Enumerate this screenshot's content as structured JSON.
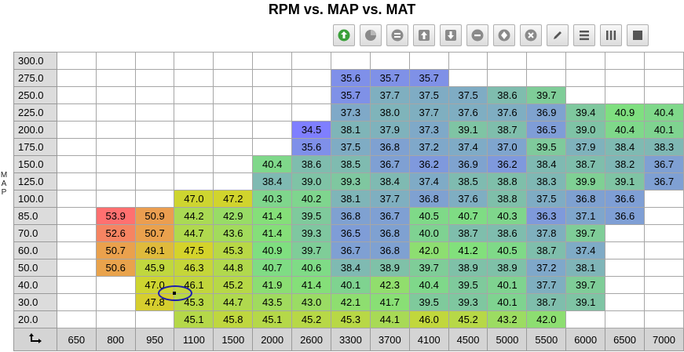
{
  "title": "RPM vs. MAP vs. MAT",
  "y_axis_label": "MAP",
  "toolbar": [
    {
      "name": "refresh-button",
      "icon": "green-circle-arrow-icon",
      "color": "#3aa03a"
    },
    {
      "name": "circle-button",
      "icon": "gray-pie-icon",
      "color": "#8a8a8a"
    },
    {
      "name": "equals-button",
      "icon": "equals-icon",
      "color": "#8a8a8a"
    },
    {
      "name": "increment-button",
      "icon": "arrow-up-icon",
      "color": "#8a8a8a"
    },
    {
      "name": "decrement-button",
      "icon": "arrow-down-icon",
      "color": "#8a8a8a"
    },
    {
      "name": "minus-button",
      "icon": "minus-icon",
      "color": "#8a8a8a"
    },
    {
      "name": "smooth-button",
      "icon": "diamond-icon",
      "color": "#8a8a8a"
    },
    {
      "name": "clear-button",
      "icon": "x-icon",
      "color": "#8a8a8a"
    },
    {
      "name": "edit-button",
      "icon": "pencil-icon",
      "color": "#555555"
    },
    {
      "name": "rows-button",
      "icon": "horizontal-lines-icon",
      "color": "#555555"
    },
    {
      "name": "columns-button",
      "icon": "vertical-lines-icon",
      "color": "#555555"
    },
    {
      "name": "grid-button",
      "icon": "square-icon",
      "color": "#555555"
    }
  ],
  "x_labels": [
    "650",
    "800",
    "950",
    "1100",
    "1500",
    "2000",
    "2600",
    "3300",
    "3700",
    "4100",
    "4500",
    "5000",
    "5500",
    "6000",
    "6500",
    "7000"
  ],
  "rows": [
    {
      "map": "300.0",
      "cells": [
        "",
        "",
        "",
        "",
        "",
        "",
        "",
        "",
        "",
        "",
        "",
        "",
        "",
        "",
        "",
        ""
      ]
    },
    {
      "map": "275.0",
      "cells": [
        "",
        "",
        "",
        "",
        "",
        "",
        "",
        "35.6",
        "35.7",
        "35.7",
        "",
        "",
        "",
        "",
        "",
        ""
      ]
    },
    {
      "map": "250.0",
      "cells": [
        "",
        "",
        "",
        "",
        "",
        "",
        "",
        "35.7",
        "37.7",
        "37.5",
        "37.5",
        "38.6",
        "39.7",
        "",
        "",
        ""
      ]
    },
    {
      "map": "225.0",
      "cells": [
        "",
        "",
        "",
        "",
        "",
        "",
        "",
        "37.3",
        "38.0",
        "37.7",
        "37.6",
        "37.6",
        "36.9",
        "39.4",
        "40.9",
        "40.4"
      ]
    },
    {
      "map": "200.0",
      "cells": [
        "",
        "",
        "",
        "",
        "",
        "",
        "34.5",
        "38.1",
        "37.9",
        "37.3",
        "39.1",
        "38.7",
        "36.5",
        "39.0",
        "40.4",
        "40.1"
      ]
    },
    {
      "map": "175.0",
      "cells": [
        "",
        "",
        "",
        "",
        "",
        "",
        "35.6",
        "37.5",
        "36.8",
        "37.2",
        "37.4",
        "37.0",
        "39.5",
        "37.9",
        "38.4",
        "38.3"
      ]
    },
    {
      "map": "150.0",
      "cells": [
        "",
        "",
        "",
        "",
        "",
        "40.4",
        "38.6",
        "38.5",
        "36.7",
        "36.2",
        "36.9",
        "36.2",
        "38.4",
        "38.7",
        "38.2",
        "36.7"
      ]
    },
    {
      "map": "125.0",
      "cells": [
        "",
        "",
        "",
        "",
        "",
        "38.4",
        "39.0",
        "39.3",
        "38.4",
        "37.4",
        "38.5",
        "38.8",
        "38.3",
        "39.9",
        "39.1",
        "36.7"
      ]
    },
    {
      "map": "100.0",
      "cells": [
        "",
        "",
        "",
        "47.0",
        "47.2",
        "40.3",
        "40.2",
        "38.1",
        "37.7",
        "36.8",
        "37.6",
        "38.8",
        "37.5",
        "36.8",
        "36.6",
        ""
      ]
    },
    {
      "map": "85.0",
      "cells": [
        "",
        "53.9",
        "50.9",
        "44.2",
        "42.9",
        "41.4",
        "39.5",
        "36.8",
        "36.7",
        "40.5",
        "40.7",
        "40.3",
        "36.3",
        "37.1",
        "36.6",
        ""
      ]
    },
    {
      "map": "70.0",
      "cells": [
        "",
        "52.6",
        "50.7",
        "44.7",
        "43.6",
        "41.4",
        "39.3",
        "36.5",
        "36.8",
        "40.0",
        "38.7",
        "38.6",
        "37.8",
        "39.7",
        "",
        ""
      ]
    },
    {
      "map": "60.0",
      "cells": [
        "",
        "50.7",
        "49.1",
        "47.5",
        "45.3",
        "40.9",
        "39.7",
        "36.7",
        "36.8",
        "42.0",
        "41.2",
        "40.5",
        "38.7",
        "37.4",
        "",
        ""
      ]
    },
    {
      "map": "50.0",
      "cells": [
        "",
        "50.6",
        "45.9",
        "46.3",
        "44.8",
        "40.7",
        "40.6",
        "38.4",
        "38.9",
        "39.7",
        "38.9",
        "38.9",
        "37.2",
        "38.1",
        "",
        ""
      ]
    },
    {
      "map": "40.0",
      "cells": [
        "",
        "",
        "47.0",
        "46.1",
        "45.2",
        "41.9",
        "41.4",
        "40.1",
        "42.3",
        "40.4",
        "39.5",
        "40.1",
        "37.7",
        "39.7",
        "",
        ""
      ]
    },
    {
      "map": "30.0",
      "cells": [
        "",
        "",
        "47.8",
        "45.3",
        "44.7",
        "43.5",
        "43.0",
        "42.1",
        "41.7",
        "39.5",
        "39.3",
        "40.1",
        "38.7",
        "39.1",
        "",
        ""
      ]
    },
    {
      "map": "20.0",
      "cells": [
        "",
        "",
        "",
        "45.1",
        "45.8",
        "45.1",
        "45.2",
        "45.3",
        "44.1",
        "46.0",
        "45.2",
        "43.2",
        "42.0",
        "",
        "",
        ""
      ]
    }
  ],
  "color_scale": {
    "min": 34.5,
    "max": 53.9,
    "colors": [
      "#7f7fff",
      "#7fe07f",
      "#d4d42a",
      "#ff7070"
    ]
  }
}
